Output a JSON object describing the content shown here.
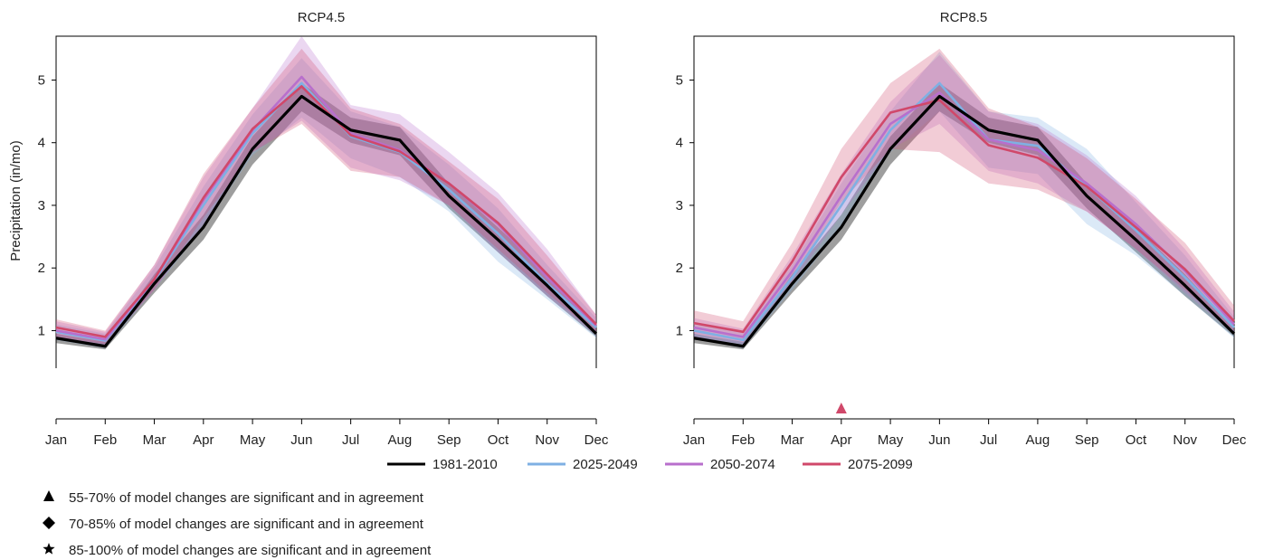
{
  "chart_data": {
    "type": "line",
    "ylabel": "Precipitation (in/mo)",
    "ylim": [
      0.4,
      5.7
    ],
    "y_ticks": [
      1,
      2,
      3,
      4,
      5
    ],
    "categories": [
      "Jan",
      "Feb",
      "Mar",
      "Apr",
      "May",
      "Jun",
      "Jul",
      "Aug",
      "Sep",
      "Oct",
      "Nov",
      "Dec"
    ],
    "legend": {
      "placement": "bottom-center",
      "entries": [
        {
          "label": "1981-2010",
          "color": "#000000"
        },
        {
          "label": "2025-2049",
          "color": "#7fb0e3"
        },
        {
          "label": "2050-2074",
          "color": "#b86fcc"
        },
        {
          "label": "2075-2099",
          "color": "#d0486a"
        }
      ]
    },
    "significance_legend": [
      {
        "symbol": "triangle",
        "label": "55-70% of model changes are significant and in agreement"
      },
      {
        "symbol": "diamond",
        "label": "70-85% of model changes are significant and in agreement"
      },
      {
        "symbol": "star",
        "label": "85-100% of model changes are significant and in agreement"
      }
    ],
    "panels": [
      {
        "title": "RCP4.5",
        "markers": [],
        "series": [
          {
            "label": "1981-2010",
            "color": "#000000",
            "values": [
              0.88,
              0.75,
              1.75,
              2.65,
              3.9,
              4.74,
              4.2,
              4.04,
              3.15,
              2.45,
              1.72,
              0.95
            ],
            "low": [
              0.8,
              0.7,
              1.6,
              2.45,
              3.65,
              4.5,
              4.0,
              3.8,
              2.95,
              2.25,
              1.55,
              0.9
            ],
            "high": [
              0.95,
              0.82,
              1.9,
              2.85,
              4.1,
              4.95,
              4.4,
              4.25,
              3.35,
              2.65,
              1.9,
              1.05
            ]
          },
          {
            "label": "2025-2049",
            "color": "#7fb0e3",
            "values": [
              0.98,
              0.84,
              1.8,
              3.0,
              4.15,
              4.95,
              4.1,
              3.85,
              3.25,
              2.55,
              1.75,
              1.05
            ],
            "low": [
              0.85,
              0.72,
              1.65,
              2.65,
              3.8,
              4.4,
              3.75,
              3.45,
              2.9,
              2.1,
              1.5,
              0.88
            ],
            "high": [
              1.1,
              0.95,
              2.0,
              3.3,
              4.45,
              5.35,
              4.5,
              4.25,
              3.65,
              2.95,
              2.05,
              1.2
            ]
          },
          {
            "label": "2050-2074",
            "color": "#b86fcc",
            "values": [
              1.0,
              0.86,
              1.82,
              3.08,
              4.2,
              5.05,
              4.15,
              3.88,
              3.35,
              2.7,
              1.85,
              1.08
            ],
            "low": [
              0.88,
              0.75,
              1.65,
              2.7,
              3.85,
              4.35,
              3.6,
              3.4,
              3.0,
              2.25,
              1.55,
              0.92
            ],
            "high": [
              1.15,
              0.98,
              2.05,
              3.45,
              4.55,
              5.7,
              4.6,
              4.45,
              3.85,
              3.2,
              2.3,
              1.25
            ]
          },
          {
            "label": "2075-2099",
            "color": "#d0486a",
            "values": [
              1.05,
              0.9,
              1.82,
              3.12,
              4.22,
              4.9,
              4.12,
              3.86,
              3.35,
              2.72,
              1.9,
              1.1
            ],
            "low": [
              0.9,
              0.78,
              1.65,
              2.8,
              3.85,
              4.3,
              3.55,
              3.45,
              3.0,
              2.3,
              1.6,
              0.95
            ],
            "high": [
              1.18,
              1.0,
              2.05,
              3.5,
              4.55,
              5.5,
              4.55,
              4.3,
              3.7,
              3.1,
              2.2,
              1.25
            ]
          }
        ]
      },
      {
        "title": "RCP8.5",
        "markers": [
          {
            "month": "Apr",
            "symbol": "triangle",
            "color": "#d0486a"
          }
        ],
        "series": [
          {
            "label": "1981-2010",
            "color": "#000000",
            "values": [
              0.88,
              0.75,
              1.75,
              2.65,
              3.9,
              4.74,
              4.2,
              4.04,
              3.15,
              2.45,
              1.72,
              0.95
            ],
            "low": [
              0.8,
              0.7,
              1.6,
              2.45,
              3.65,
              4.5,
              4.0,
              3.8,
              2.95,
              2.25,
              1.55,
              0.9
            ],
            "high": [
              0.95,
              0.82,
              1.9,
              2.85,
              4.1,
              4.95,
              4.4,
              4.25,
              3.35,
              2.65,
              1.9,
              1.05
            ]
          },
          {
            "label": "2025-2049",
            "color": "#7fb0e3",
            "values": [
              1.0,
              0.85,
              1.85,
              3.0,
              4.2,
              4.95,
              4.05,
              3.95,
              3.3,
              2.6,
              1.85,
              1.05
            ],
            "low": [
              0.88,
              0.72,
              1.65,
              2.65,
              3.85,
              4.5,
              3.6,
              3.5,
              2.7,
              2.2,
              1.55,
              0.88
            ],
            "high": [
              1.12,
              0.98,
              2.05,
              3.35,
              4.5,
              5.45,
              4.5,
              4.4,
              3.9,
              3.05,
              2.2,
              1.22
            ]
          },
          {
            "label": "2050-2074",
            "color": "#b86fcc",
            "values": [
              1.05,
              0.9,
              1.95,
              3.15,
              4.3,
              4.8,
              4.05,
              3.88,
              3.35,
              2.7,
              1.95,
              1.1
            ],
            "low": [
              0.9,
              0.78,
              1.75,
              2.85,
              3.9,
              4.3,
              3.55,
              3.35,
              2.9,
              2.3,
              1.6,
              0.95
            ],
            "high": [
              1.2,
              1.03,
              2.2,
              3.5,
              4.65,
              5.4,
              4.5,
              4.3,
              3.8,
              3.15,
              2.3,
              1.3
            ]
          },
          {
            "label": "2075-2099",
            "color": "#d0486a",
            "values": [
              1.12,
              0.98,
              2.1,
              3.45,
              4.48,
              4.68,
              3.96,
              3.76,
              3.3,
              2.65,
              1.98,
              1.15
            ],
            "low": [
              0.95,
              0.82,
              1.85,
              3.05,
              3.9,
              3.85,
              3.35,
              3.25,
              2.9,
              2.3,
              1.65,
              1.0
            ],
            "high": [
              1.32,
              1.15,
              2.4,
              3.9,
              4.95,
              5.5,
              4.55,
              4.25,
              3.75,
              3.1,
              2.4,
              1.4
            ]
          }
        ]
      }
    ]
  }
}
